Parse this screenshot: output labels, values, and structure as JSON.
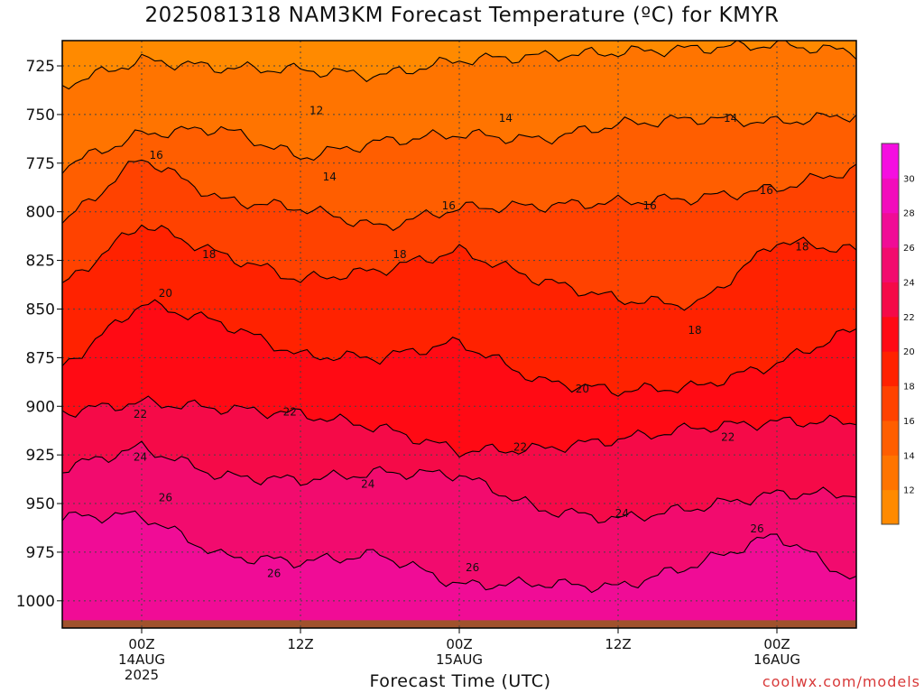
{
  "chart_data": {
    "type": "heatmap",
    "title": "2025081318 NAM3KM Forecast Temperature (ºC) for KMYR",
    "xlabel": "Forecast Time (UTC)",
    "ylabel": "",
    "credit": "coolwx.com/models",
    "y_axis": {
      "quantity": "pressure (hPa)",
      "inverted": true,
      "range": [
        1014,
        712
      ],
      "ticks": [
        725,
        750,
        775,
        800,
        825,
        850,
        875,
        900,
        925,
        950,
        975,
        1000
      ]
    },
    "x_axis": {
      "range_hours_utc": [
        "2025-08-13T18Z",
        "2025-08-16T06Z"
      ],
      "ticks": [
        {
          "hour": 6,
          "lines": [
            "00Z",
            "14AUG",
            "2025"
          ]
        },
        {
          "hour": 18,
          "lines": [
            "12Z"
          ]
        },
        {
          "hour": 30,
          "lines": [
            "00Z",
            "15AUG"
          ]
        },
        {
          "hour": 42,
          "lines": [
            "12Z"
          ]
        },
        {
          "hour": 54,
          "lines": [
            "00Z",
            "16AUG"
          ]
        }
      ],
      "hour_range": [
        0,
        60
      ]
    },
    "grid": true,
    "colorbar": {
      "placement": "right",
      "levels": [
        10,
        12,
        14,
        16,
        18,
        20,
        22,
        24,
        26,
        28,
        30,
        32
      ],
      "tick_labels": [
        "12",
        "14",
        "16",
        "18",
        "20",
        "22",
        "24",
        "26",
        "28",
        "30"
      ],
      "colors": [
        "#ff8a00",
        "#ff7400",
        "#ff5e00",
        "#ff4200",
        "#ff2200",
        "#ff0a14",
        "#f50a48",
        "#f20b6e",
        "#f00c96",
        "#f20cbc",
        "#f50ee0"
      ]
    },
    "ground_color": "#a0522d",
    "contour_levels": [
      12,
      14,
      16,
      18,
      20,
      22,
      24,
      26
    ],
    "isotherm_pressure_hPa": {
      "hours": [
        0,
        6,
        12,
        18,
        24,
        30,
        36,
        42,
        48,
        54,
        60
      ],
      "12": [
        735,
        722,
        726,
        727,
        730,
        722,
        720,
        718,
        716,
        714,
        718
      ],
      "14": [
        777,
        760,
        757,
        772,
        764,
        760,
        763,
        755,
        752,
        754,
        750
      ],
      "16": [
        806,
        772,
        794,
        798,
        808,
        798,
        797,
        795,
        793,
        788,
        778
      ],
      "18": [
        838,
        806,
        822,
        835,
        830,
        820,
        835,
        845,
        848,
        815,
        820
      ],
      "20": [
        880,
        847,
        857,
        874,
        875,
        867,
        887,
        892,
        890,
        878,
        860
      ],
      "22": [
        903,
        898,
        901,
        904,
        911,
        923,
        922,
        917,
        911,
        908,
        908
      ],
      "24": [
        932,
        921,
        936,
        938,
        934,
        935,
        953,
        958,
        952,
        945,
        945
      ],
      "26": [
        957,
        956,
        977,
        980,
        976,
        992,
        991,
        993,
        981,
        966,
        990
      ]
    },
    "contour_labels": [
      {
        "value": "12",
        "hour": 19.2,
        "p": 748
      },
      {
        "value": "14",
        "hour": 20.2,
        "p": 782
      },
      {
        "value": "14",
        "hour": 33.5,
        "p": 752
      },
      {
        "value": "14",
        "hour": 50.5,
        "p": 752
      },
      {
        "value": "16",
        "hour": 7.1,
        "p": 771
      },
      {
        "value": "16",
        "hour": 29.2,
        "p": 797
      },
      {
        "value": "16",
        "hour": 44.4,
        "p": 797
      },
      {
        "value": "16",
        "hour": 53.2,
        "p": 789
      },
      {
        "value": "18",
        "hour": 11.1,
        "p": 822
      },
      {
        "value": "18",
        "hour": 25.5,
        "p": 822
      },
      {
        "value": "18",
        "hour": 47.8,
        "p": 861
      },
      {
        "value": "18",
        "hour": 55.9,
        "p": 818
      },
      {
        "value": "20",
        "hour": 7.8,
        "p": 842
      },
      {
        "value": "20",
        "hour": 39.3,
        "p": 891
      },
      {
        "value": "22",
        "hour": 5.9,
        "p": 904
      },
      {
        "value": "22",
        "hour": 17.2,
        "p": 903
      },
      {
        "value": "22",
        "hour": 34.6,
        "p": 921
      },
      {
        "value": "22",
        "hour": 50.3,
        "p": 916
      },
      {
        "value": "24",
        "hour": 5.9,
        "p": 926
      },
      {
        "value": "24",
        "hour": 23.1,
        "p": 940
      },
      {
        "value": "24",
        "hour": 42.3,
        "p": 955
      },
      {
        "value": "26",
        "hour": 7.8,
        "p": 947
      },
      {
        "value": "26",
        "hour": 16.0,
        "p": 986
      },
      {
        "value": "26",
        "hour": 31.0,
        "p": 983
      },
      {
        "value": "26",
        "hour": 52.5,
        "p": 963
      }
    ]
  }
}
